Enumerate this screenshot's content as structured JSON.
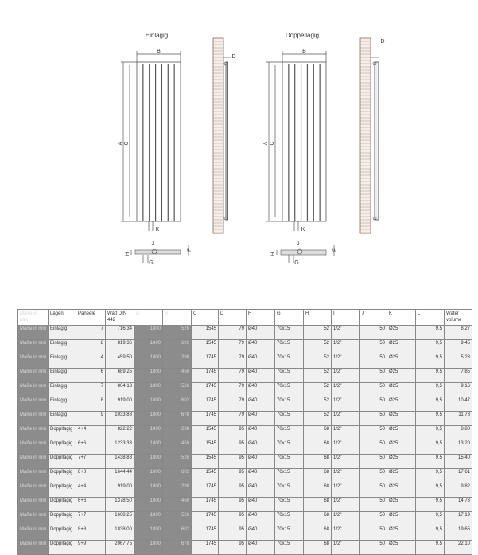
{
  "drawing": {
    "single": {
      "title": "Einlagig",
      "labels": {
        "A": "A",
        "B": "B",
        "C": "C",
        "D": "D",
        "K": "K",
        "F": "F",
        "G": "G",
        "H": "H",
        "J": "J"
      }
    },
    "double": {
      "title": "Doppellagig",
      "labels": {
        "A": "A",
        "B": "B",
        "C": "C",
        "D": "D",
        "K": "K",
        "F": "F",
        "G": "G",
        "H": "H",
        "J": "J"
      }
    }
  },
  "table": {
    "headers": [
      "Maße in mm",
      "Lagen",
      "Paneele",
      "Watt DIN 442",
      "A",
      "B",
      "C",
      "D",
      "F",
      "G",
      "H",
      "I",
      "J",
      "K",
      "L",
      "Water volume"
    ],
    "rows": [
      [
        "Maße in mm",
        "Einlagig",
        "7",
        "716,34",
        "1800",
        "526",
        "1545",
        "79",
        "Ø40",
        "70x15",
        "52",
        "1/2\"",
        "50",
        "Ø25",
        "9,5",
        "8,27"
      ],
      [
        "Maße in mm",
        "Einlagig",
        "8",
        "819,36",
        "1800",
        "602",
        "1545",
        "79",
        "Ø40",
        "70x15",
        "52",
        "1/2\"",
        "50",
        "Ø25",
        "9,5",
        "9,45"
      ],
      [
        "Maße in mm",
        "Einlagig",
        "4",
        "459,50",
        "1800",
        "298",
        "1745",
        "79",
        "Ø40",
        "70x15",
        "52",
        "1/2\"",
        "50",
        "Ø25",
        "9,5",
        "5,23"
      ],
      [
        "Maße in mm",
        "Einlagig",
        "6",
        "689,25",
        "1800",
        "450",
        "1745",
        "79",
        "Ø40",
        "70x15",
        "52",
        "1/2\"",
        "50",
        "Ø25",
        "9,5",
        "7,85"
      ],
      [
        "Maße in mm",
        "Einlagig",
        "7",
        "804,13",
        "1800",
        "526",
        "1745",
        "79",
        "Ø40",
        "70x15",
        "52",
        "1/2\"",
        "50",
        "Ø25",
        "9,5",
        "9,16"
      ],
      [
        "Maße in mm",
        "Einlagig",
        "8",
        "919,00",
        "1800",
        "602",
        "1745",
        "79",
        "Ø40",
        "70x15",
        "52",
        "1/2\"",
        "50",
        "Ø25",
        "9,5",
        "10,47"
      ],
      [
        "Maße in mm",
        "Einlagig",
        "9",
        "1033,88",
        "1800",
        "678",
        "1745",
        "79",
        "Ø40",
        "70x15",
        "52",
        "1/2\"",
        "50",
        "Ø25",
        "9,5",
        "11,78"
      ],
      [
        "Maße in mm",
        "Doppllagig",
        "4+4",
        "822,22",
        "1800",
        "298",
        "1545",
        "95",
        "Ø40",
        "70x15",
        "68",
        "1/2\"",
        "50",
        "Ø25",
        "9,5",
        "8,80"
      ],
      [
        "Maße in mm",
        "Doppllagig",
        "6+6",
        "1233,33",
        "1800",
        "450",
        "1545",
        "95",
        "Ø40",
        "70x15",
        "68",
        "1/2\"",
        "50",
        "Ø25",
        "9,5",
        "13,20"
      ],
      [
        "Maße in mm",
        "Doppllagig",
        "7+7",
        "1438,88",
        "1800",
        "526",
        "1545",
        "95",
        "Ø40",
        "70x15",
        "68",
        "1/2\"",
        "50",
        "Ø25",
        "9,5",
        "15,40"
      ],
      [
        "Maße in mm",
        "Doppllagig",
        "8+8",
        "1644,44",
        "1800",
        "602",
        "1545",
        "95",
        "Ø40",
        "70x15",
        "68",
        "1/2\"",
        "50",
        "Ø25",
        "9,5",
        "17,61"
      ],
      [
        "Maße in mm",
        "Doppllagig",
        "4+4",
        "919,00",
        "1800",
        "298",
        "1745",
        "95",
        "Ø40",
        "70x15",
        "68",
        "1/2\"",
        "50",
        "Ø25",
        "9,5",
        "9,82"
      ],
      [
        "Maße in mm",
        "Doppllagig",
        "6+6",
        "1378,50",
        "1800",
        "450",
        "1745",
        "95",
        "Ø40",
        "70x15",
        "68",
        "1/2\"",
        "50",
        "Ø25",
        "9,5",
        "14,73"
      ],
      [
        "Maße in mm",
        "Doppllagig",
        "7+7",
        "1608,25",
        "1800",
        "526",
        "1745",
        "95",
        "Ø40",
        "70x15",
        "68",
        "1/2\"",
        "50",
        "Ø25",
        "9,5",
        "17,19"
      ],
      [
        "Maße in mm",
        "Doppllagig",
        "8+8",
        "1838,00",
        "1800",
        "602",
        "1745",
        "95",
        "Ø40",
        "70x15",
        "68",
        "1/2\"",
        "50",
        "Ø25",
        "9,5",
        "19,65"
      ],
      [
        "Maße in mm",
        "Doppllagig",
        "9+9",
        "2067,75",
        "1800",
        "678",
        "1745",
        "95",
        "Ø40",
        "70x15",
        "68",
        "1/2\"",
        "50",
        "Ø25",
        "9,5",
        "22,10"
      ]
    ]
  }
}
